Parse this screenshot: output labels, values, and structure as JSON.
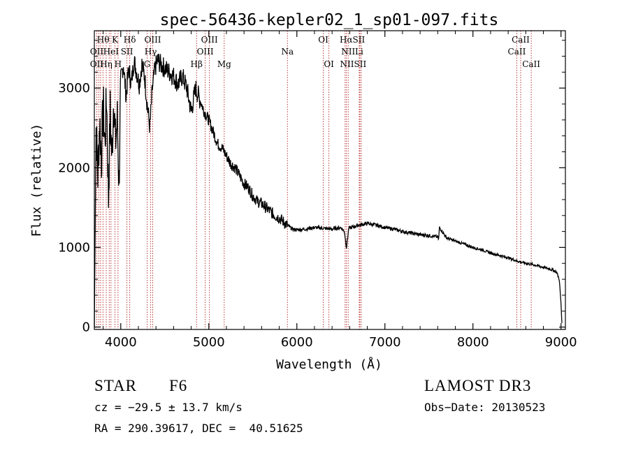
{
  "chart_data": {
    "type": "line",
    "title": "spec-56436-kepler02_1_sp01-097.fits",
    "xlabel": "Wavelength (Å)",
    "ylabel": "Flux (relative)",
    "xlim": [
      3700,
      9050
    ],
    "ylim": [
      -30,
      3720
    ],
    "xticks": [
      4000,
      5000,
      6000,
      7000,
      8000,
      9000
    ],
    "xtick_labels": [
      "4000",
      "5000",
      "6000",
      "7000",
      "8000",
      "9000"
    ],
    "yticks": [
      0,
      1000,
      2000,
      3000
    ],
    "ytick_labels": [
      "0",
      "1000",
      "2000",
      "3000"
    ],
    "series": [
      {
        "name": "flux",
        "x": [
          3700,
          3720,
          3740,
          3760,
          3780,
          3800,
          3820,
          3840,
          3860,
          3880,
          3900,
          3920,
          3940,
          3960,
          3980,
          4000,
          4030,
          4060,
          4090,
          4120,
          4150,
          4180,
          4210,
          4240,
          4270,
          4300,
          4330,
          4360,
          4390,
          4420,
          4450,
          4500,
          4550,
          4600,
          4650,
          4700,
          4750,
          4800,
          4850,
          4900,
          4950,
          5000,
          5050,
          5100,
          5150,
          5200,
          5250,
          5300,
          5350,
          5400,
          5450,
          5500,
          5550,
          5600,
          5650,
          5700,
          5750,
          5800,
          5850,
          5900,
          5950,
          6000,
          6100,
          6200,
          6300,
          6400,
          6500,
          6540,
          6563,
          6590,
          6650,
          6700,
          6800,
          6900,
          7000,
          7100,
          7200,
          7300,
          7400,
          7500,
          7600,
          7610,
          7620,
          7700,
          7800,
          7900,
          8000,
          8100,
          8200,
          8300,
          8400,
          8500,
          8600,
          8700,
          8800,
          8900,
          8950,
          8980,
          9000,
          9010
        ],
        "y": [
          0,
          2500,
          1900,
          2600,
          2100,
          2800,
          2300,
          2900,
          1600,
          2700,
          2100,
          2950,
          2300,
          2600,
          1800,
          3100,
          3300,
          2900,
          3250,
          3050,
          3350,
          3200,
          3050,
          3300,
          3150,
          2800,
          2500,
          3000,
          3250,
          3350,
          3300,
          3250,
          3200,
          3150,
          3050,
          3150,
          3000,
          2700,
          3000,
          2850,
          2700,
          2600,
          2450,
          2300,
          2250,
          2150,
          2050,
          2000,
          1900,
          1800,
          1750,
          1650,
          1580,
          1550,
          1500,
          1450,
          1400,
          1370,
          1320,
          1270,
          1230,
          1220,
          1230,
          1250,
          1240,
          1230,
          1250,
          1200,
          1000,
          1240,
          1260,
          1280,
          1300,
          1280,
          1250,
          1230,
          1200,
          1180,
          1160,
          1150,
          1130,
          1100,
          1250,
          1120,
          1080,
          1040,
          1000,
          970,
          930,
          900,
          870,
          830,
          800,
          780,
          750,
          720,
          690,
          600,
          300,
          50
        ]
      }
    ],
    "line_ids": {
      "wavelengths": [
        3727,
        3750,
        3771,
        3798,
        3835,
        3869,
        3889,
        3934,
        3969,
        4070,
        4102,
        4300,
        4340,
        4363,
        4861,
        4959,
        5007,
        5175,
        5893,
        6300,
        6364,
        6548,
        6563,
        6583,
        6708,
        6716,
        6731,
        8498,
        8542,
        8662
      ],
      "labels": [
        {
          "text": "Hθ",
          "wl": 3800,
          "row": 1
        },
        {
          "text": "K",
          "wl": 3934,
          "row": 1
        },
        {
          "text": "Hδ",
          "wl": 4102,
          "row": 1
        },
        {
          "text": "OIII",
          "wl": 4363,
          "row": 1
        },
        {
          "text": "OIII",
          "wl": 5007,
          "row": 1
        },
        {
          "text": "OI",
          "wl": 6300,
          "row": 1
        },
        {
          "text": "HαSII",
          "wl": 6630,
          "row": 1
        },
        {
          "text": "CaII",
          "wl": 8542,
          "row": 1
        },
        {
          "text": "OII",
          "wl": 3727,
          "row": 2
        },
        {
          "text": "HeI",
          "wl": 3889,
          "row": 2
        },
        {
          "text": "SII",
          "wl": 4070,
          "row": 2
        },
        {
          "text": "Hγ",
          "wl": 4340,
          "row": 2
        },
        {
          "text": "OIII",
          "wl": 4959,
          "row": 2
        },
        {
          "text": "Na",
          "wl": 5893,
          "row": 2
        },
        {
          "text": "NII",
          "wl": 6583,
          "row": 2
        },
        {
          "text": "Li",
          "wl": 6708,
          "row": 2
        },
        {
          "text": "CaII",
          "wl": 8498,
          "row": 2
        },
        {
          "text": "OII",
          "wl": 3727,
          "row": 3
        },
        {
          "text": "Hη",
          "wl": 3835,
          "row": 3
        },
        {
          "text": "H",
          "wl": 3969,
          "row": 3
        },
        {
          "text": "G",
          "wl": 4300,
          "row": 3
        },
        {
          "text": "Hβ",
          "wl": 4861,
          "row": 3
        },
        {
          "text": "Mg",
          "wl": 5175,
          "row": 3
        },
        {
          "text": "OI",
          "wl": 6364,
          "row": 3
        },
        {
          "text": "NIISII",
          "wl": 6640,
          "row": 3
        },
        {
          "text": "CaII",
          "wl": 8662,
          "row": 3
        }
      ]
    }
  },
  "footer": {
    "object_type": "STAR",
    "subclass": "F6",
    "survey": "LAMOST DR3",
    "redshift": "cz = −29.5 ± 13.7 km/s",
    "obs_date": "Obs−Date: 20130523",
    "coords": "RA = 290.39617, DEC =  40.51625"
  }
}
